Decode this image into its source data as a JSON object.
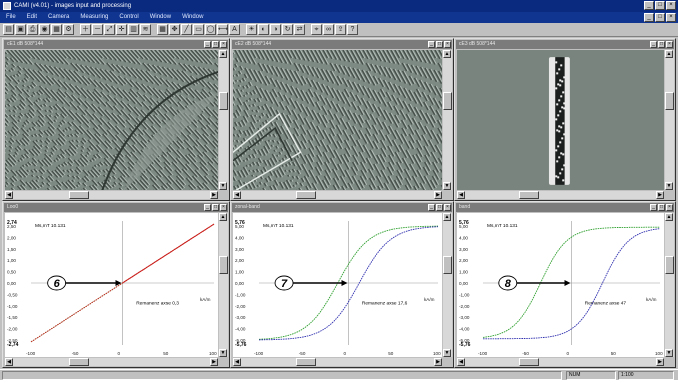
{
  "app": {
    "title": "CAMI (v4.01) - images input and processing"
  },
  "menu": [
    "File",
    "Edit",
    "Camera",
    "Measuring",
    "Control",
    "Window",
    "Window"
  ],
  "toolbar_icons": [
    "open-icon",
    "save-icon",
    "print-icon",
    "camera-icon",
    "grab-icon",
    "settings-icon",
    "zoom-in-icon",
    "zoom-out-icon",
    "zoom-fit-icon",
    "crosshair-icon",
    "histogram-icon",
    "filter-icon",
    "grid-icon",
    "move-icon",
    "line-icon",
    "rect-icon",
    "ellipse-icon",
    "measure-icon",
    "text-icon",
    "brightness-icon",
    "contrast-icon",
    "invert-icon",
    "rotate-icon",
    "flip-icon",
    "calibrate-icon",
    "loop-icon",
    "export-icon",
    "help-icon"
  ],
  "image_windows": [
    {
      "title": "cE1 dB 508*144"
    },
    {
      "title": "cE2 dB 508*144"
    },
    {
      "title": "cE3 dB 508*144"
    }
  ],
  "plot_windows": [
    {
      "title": "Loo0",
      "ms_label": "Ms,mT 10.131",
      "ymax_label": "2,74",
      "ymin_label": "-2,74",
      "remanence_label": "Remanenz axse  0,3",
      "step_label": "6",
      "unit_label": "kA/m",
      "x_ticks": [
        "-100",
        "-50",
        "0",
        "50",
        "100"
      ],
      "y_ticks": [
        "2,50",
        "2,00",
        "1,50",
        "1,00",
        "0,50",
        "0,00",
        "-0,50",
        "-1,00",
        "-1,50",
        "-2,00",
        "-2,50"
      ]
    },
    {
      "title": "zonal-band",
      "ms_label": "Ms,mT 10.131",
      "ymax_label": "5,76",
      "ymin_label": "-5,76",
      "remanence_label": "Remanenz axse  17,6",
      "step_label": "7",
      "unit_label": "kA/m",
      "x_ticks": [
        "-100",
        "-50",
        "0",
        "50",
        "100"
      ],
      "y_ticks": [
        "5,00",
        "4,00",
        "3,00",
        "2,00",
        "1,00",
        "0,00",
        "-1,00",
        "-2,00",
        "-3,00",
        "-4,00",
        "-5,00"
      ]
    },
    {
      "title": "band",
      "ms_label": "Ms,mT 10.131",
      "ymax_label": "5,76",
      "ymin_label": "-5,76",
      "remanence_label": "Remanenz axse  47",
      "step_label": "8",
      "unit_label": "kA/m",
      "x_ticks": [
        "-100",
        "-50",
        "0",
        "50",
        "100"
      ],
      "y_ticks": [
        "5,00",
        "4,00",
        "3,00",
        "2,00",
        "1,00",
        "0,00",
        "-1,00",
        "-2,00",
        "-3,00",
        "-4,00",
        "-5,00"
      ]
    }
  ],
  "colors": {
    "red": "#d02020",
    "green": "#2fa02f",
    "blue": "#3030b0",
    "title_blue": "#0a2a80"
  },
  "status": {
    "mode": "NUM",
    "zoom": "1:100"
  }
}
